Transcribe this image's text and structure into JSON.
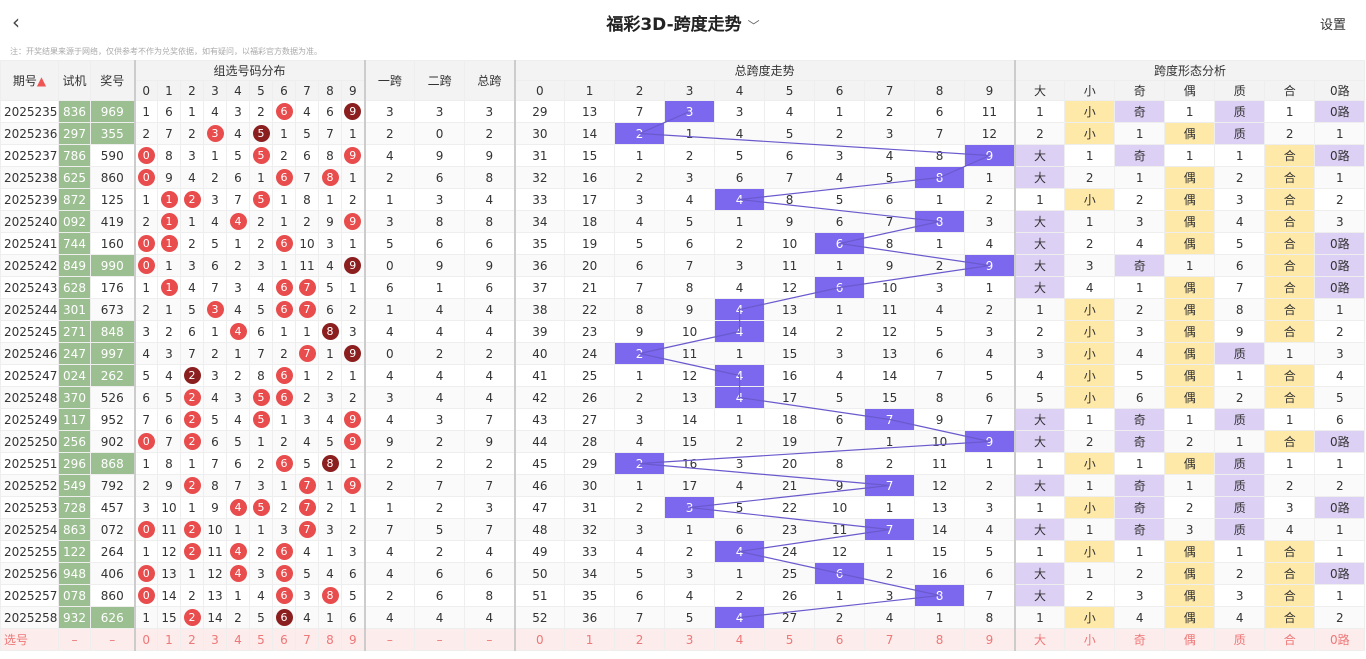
{
  "header": {
    "back_icon": "‹",
    "title": "福彩3D-跨度走势",
    "settings": "设置"
  },
  "note": "注：开奖结果来源于网络，仅供参考不作为兑奖依据，如有疑问，以福彩官方数据为准。",
  "columns": {
    "period": "期号",
    "trial": "试机",
    "lottery": "奖号",
    "dist_title": "组选号码分布",
    "kua1": "一跨",
    "kua2": "二跨",
    "total": "总跨",
    "trend_title": "总跨度走势",
    "shape_title": "跨度形态分析",
    "digits": [
      "0",
      "1",
      "2",
      "3",
      "4",
      "5",
      "6",
      "7",
      "8",
      "9"
    ],
    "shape": [
      "大",
      "小",
      "奇",
      "偶",
      "质",
      "合",
      "0路"
    ]
  },
  "rows": [
    {
      "p": "2025235",
      "t": "836",
      "n": "969",
      "g": 1,
      "d": [
        "1",
        "6",
        "1",
        "4",
        "3",
        "2",
        "6",
        "4",
        "6",
        "9"
      ],
      "k": [
        "3",
        "3",
        "3"
      ],
      "tr": [
        "29",
        "13",
        "7",
        "3",
        "3",
        "4",
        "1",
        "2",
        "6",
        "11"
      ],
      "sp": 3,
      "sh": [
        "1",
        "小",
        "奇",
        "1",
        "质",
        "1",
        "0路"
      ]
    },
    {
      "p": "2025236",
      "t": "297",
      "n": "355",
      "g": 1,
      "d": [
        "2",
        "7",
        "2",
        "3",
        "4",
        "5",
        "1",
        "5",
        "7",
        "1"
      ],
      "k": [
        "2",
        "0",
        "2"
      ],
      "tr": [
        "30",
        "14",
        "2",
        "1",
        "4",
        "5",
        "2",
        "3",
        "7",
        "12"
      ],
      "sp": 2,
      "sh": [
        "2",
        "小",
        "1",
        "偶",
        "质",
        "2",
        "1"
      ]
    },
    {
      "p": "2025237",
      "t": "786",
      "n": "590",
      "g": 0,
      "d": [
        "0",
        "8",
        "3",
        "1",
        "5",
        "5",
        "2",
        "6",
        "8",
        "9"
      ],
      "k": [
        "4",
        "9",
        "9"
      ],
      "tr": [
        "31",
        "15",
        "1",
        "2",
        "5",
        "6",
        "3",
        "4",
        "8",
        "9"
      ],
      "sp": 9,
      "sh": [
        "大",
        "1",
        "奇",
        "1",
        "1",
        "合",
        "0路"
      ]
    },
    {
      "p": "2025238",
      "t": "625",
      "n": "860",
      "g": 0,
      "d": [
        "0",
        "9",
        "4",
        "2",
        "6",
        "1",
        "6",
        "7",
        "8",
        "1"
      ],
      "k": [
        "2",
        "6",
        "8"
      ],
      "tr": [
        "32",
        "16",
        "2",
        "3",
        "6",
        "7",
        "4",
        "5",
        "8",
        "1"
      ],
      "sp": 8,
      "sh": [
        "大",
        "2",
        "1",
        "偶",
        "2",
        "合",
        "1"
      ]
    },
    {
      "p": "2025239",
      "t": "872",
      "n": "125",
      "g": 0,
      "d": [
        "1",
        "1",
        "2",
        "3",
        "7",
        "5",
        "1",
        "8",
        "1",
        "2"
      ],
      "k": [
        "1",
        "3",
        "4"
      ],
      "tr": [
        "33",
        "17",
        "3",
        "4",
        "4",
        "8",
        "5",
        "6",
        "1",
        "2"
      ],
      "sp": 4,
      "sh": [
        "1",
        "小",
        "2",
        "偶",
        "3",
        "合",
        "2"
      ]
    },
    {
      "p": "2025240",
      "t": "092",
      "n": "419",
      "g": 0,
      "d": [
        "2",
        "1",
        "1",
        "4",
        "4",
        "2",
        "1",
        "2",
        "9",
        "9"
      ],
      "k": [
        "3",
        "8",
        "8"
      ],
      "tr": [
        "34",
        "18",
        "4",
        "5",
        "1",
        "9",
        "6",
        "7",
        "8",
        "3"
      ],
      "sp": 8,
      "sh": [
        "大",
        "1",
        "3",
        "偶",
        "4",
        "合",
        "3"
      ]
    },
    {
      "p": "2025241",
      "t": "744",
      "n": "160",
      "g": 0,
      "d": [
        "0",
        "1",
        "2",
        "5",
        "1",
        "2",
        "6",
        "10",
        "3",
        "1"
      ],
      "k": [
        "5",
        "6",
        "6"
      ],
      "tr": [
        "35",
        "19",
        "5",
        "6",
        "2",
        "10",
        "6",
        "8",
        "1",
        "4"
      ],
      "sp": 6,
      "sh": [
        "大",
        "2",
        "4",
        "偶",
        "5",
        "合",
        "0路"
      ]
    },
    {
      "p": "2025242",
      "t": "849",
      "n": "990",
      "g": 1,
      "d": [
        "0",
        "1",
        "3",
        "6",
        "2",
        "3",
        "1",
        "11",
        "4",
        "9"
      ],
      "k": [
        "0",
        "9",
        "9"
      ],
      "tr": [
        "36",
        "20",
        "6",
        "7",
        "3",
        "11",
        "1",
        "9",
        "2",
        "9"
      ],
      "sp": 9,
      "sh": [
        "大",
        "3",
        "奇",
        "1",
        "6",
        "合",
        "0路"
      ]
    },
    {
      "p": "2025243",
      "t": "628",
      "n": "176",
      "g": 0,
      "d": [
        "1",
        "1",
        "4",
        "7",
        "3",
        "4",
        "6",
        "7",
        "5",
        "1"
      ],
      "k": [
        "6",
        "1",
        "6"
      ],
      "tr": [
        "37",
        "21",
        "7",
        "8",
        "4",
        "12",
        "6",
        "10",
        "3",
        "1"
      ],
      "sp": 6,
      "sh": [
        "大",
        "4",
        "1",
        "偶",
        "7",
        "合",
        "0路"
      ]
    },
    {
      "p": "2025244",
      "t": "301",
      "n": "673",
      "g": 0,
      "d": [
        "2",
        "1",
        "5",
        "3",
        "4",
        "5",
        "6",
        "7",
        "6",
        "2"
      ],
      "k": [
        "1",
        "4",
        "4"
      ],
      "tr": [
        "38",
        "22",
        "8",
        "9",
        "4",
        "13",
        "1",
        "11",
        "4",
        "2"
      ],
      "sp": 4,
      "sh": [
        "1",
        "小",
        "2",
        "偶",
        "8",
        "合",
        "1"
      ]
    },
    {
      "p": "2025245",
      "t": "271",
      "n": "848",
      "g": 1,
      "d": [
        "3",
        "2",
        "6",
        "1",
        "4",
        "6",
        "1",
        "1",
        "8",
        "3"
      ],
      "k": [
        "4",
        "4",
        "4"
      ],
      "tr": [
        "39",
        "23",
        "9",
        "10",
        "4",
        "14",
        "2",
        "12",
        "5",
        "3"
      ],
      "sp": 4,
      "sh": [
        "2",
        "小",
        "3",
        "偶",
        "9",
        "合",
        "2"
      ]
    },
    {
      "p": "2025246",
      "t": "247",
      "n": "997",
      "g": 1,
      "d": [
        "4",
        "3",
        "7",
        "2",
        "1",
        "7",
        "2",
        "7",
        "1",
        "9"
      ],
      "k": [
        "0",
        "2",
        "2"
      ],
      "tr": [
        "40",
        "24",
        "2",
        "11",
        "1",
        "15",
        "3",
        "13",
        "6",
        "4"
      ],
      "sp": 2,
      "sh": [
        "3",
        "小",
        "4",
        "偶",
        "质",
        "1",
        "3"
      ]
    },
    {
      "p": "2025247",
      "t": "024",
      "n": "262",
      "g": 1,
      "d": [
        "5",
        "4",
        "2",
        "3",
        "2",
        "8",
        "6",
        "1",
        "2",
        "1"
      ],
      "k": [
        "4",
        "4",
        "4"
      ],
      "tr": [
        "41",
        "25",
        "1",
        "12",
        "4",
        "16",
        "4",
        "14",
        "7",
        "5"
      ],
      "sp": 4,
      "sh": [
        "4",
        "小",
        "5",
        "偶",
        "1",
        "合",
        "4"
      ]
    },
    {
      "p": "2025248",
      "t": "370",
      "n": "526",
      "g": 0,
      "d": [
        "6",
        "5",
        "2",
        "4",
        "3",
        "5",
        "6",
        "2",
        "3",
        "2"
      ],
      "k": [
        "3",
        "4",
        "4"
      ],
      "tr": [
        "42",
        "26",
        "2",
        "13",
        "4",
        "17",
        "5",
        "15",
        "8",
        "6"
      ],
      "sp": 4,
      "sh": [
        "5",
        "小",
        "6",
        "偶",
        "2",
        "合",
        "5"
      ]
    },
    {
      "p": "2025249",
      "t": "117",
      "n": "952",
      "g": 0,
      "d": [
        "7",
        "6",
        "2",
        "5",
        "4",
        "5",
        "1",
        "3",
        "4",
        "9"
      ],
      "k": [
        "4",
        "3",
        "7"
      ],
      "tr": [
        "43",
        "27",
        "3",
        "14",
        "1",
        "18",
        "6",
        "7",
        "9",
        "7"
      ],
      "sp": 7,
      "sh": [
        "大",
        "1",
        "奇",
        "1",
        "质",
        "1",
        "6"
      ]
    },
    {
      "p": "2025250",
      "t": "256",
      "n": "902",
      "g": 0,
      "d": [
        "0",
        "7",
        "2",
        "6",
        "5",
        "1",
        "2",
        "4",
        "5",
        "9"
      ],
      "k": [
        "9",
        "2",
        "9"
      ],
      "tr": [
        "44",
        "28",
        "4",
        "15",
        "2",
        "19",
        "7",
        "1",
        "10",
        "9"
      ],
      "sp": 9,
      "sh": [
        "大",
        "2",
        "奇",
        "2",
        "1",
        "合",
        "0路"
      ]
    },
    {
      "p": "2025251",
      "t": "296",
      "n": "868",
      "g": 1,
      "d": [
        "1",
        "8",
        "1",
        "7",
        "6",
        "2",
        "6",
        "5",
        "8",
        "1"
      ],
      "k": [
        "2",
        "2",
        "2"
      ],
      "tr": [
        "45",
        "29",
        "2",
        "16",
        "3",
        "20",
        "8",
        "2",
        "11",
        "1"
      ],
      "sp": 2,
      "sh": [
        "1",
        "小",
        "1",
        "偶",
        "质",
        "1",
        "1"
      ]
    },
    {
      "p": "2025252",
      "t": "549",
      "n": "792",
      "g": 0,
      "d": [
        "2",
        "9",
        "2",
        "8",
        "7",
        "3",
        "1",
        "7",
        "1",
        "9"
      ],
      "k": [
        "2",
        "7",
        "7"
      ],
      "tr": [
        "46",
        "30",
        "1",
        "17",
        "4",
        "21",
        "9",
        "7",
        "12",
        "2"
      ],
      "sp": 7,
      "sh": [
        "大",
        "1",
        "奇",
        "1",
        "质",
        "2",
        "2"
      ]
    },
    {
      "p": "2025253",
      "t": "728",
      "n": "457",
      "g": 0,
      "d": [
        "3",
        "10",
        "1",
        "9",
        "4",
        "5",
        "2",
        "7",
        "2",
        "1"
      ],
      "k": [
        "1",
        "2",
        "3"
      ],
      "tr": [
        "47",
        "31",
        "2",
        "3",
        "5",
        "22",
        "10",
        "1",
        "13",
        "3"
      ],
      "sp": 3,
      "sh": [
        "1",
        "小",
        "奇",
        "2",
        "质",
        "3",
        "0路"
      ]
    },
    {
      "p": "2025254",
      "t": "863",
      "n": "072",
      "g": 0,
      "d": [
        "0",
        "11",
        "2",
        "10",
        "1",
        "1",
        "3",
        "7",
        "3",
        "2"
      ],
      "k": [
        "7",
        "5",
        "7"
      ],
      "tr": [
        "48",
        "32",
        "3",
        "1",
        "6",
        "23",
        "11",
        "7",
        "14",
        "4"
      ],
      "sp": 7,
      "sh": [
        "大",
        "1",
        "奇",
        "3",
        "质",
        "4",
        "1"
      ]
    },
    {
      "p": "2025255",
      "t": "122",
      "n": "264",
      "g": 0,
      "d": [
        "1",
        "12",
        "2",
        "11",
        "4",
        "2",
        "6",
        "4",
        "1",
        "3"
      ],
      "k": [
        "4",
        "2",
        "4"
      ],
      "tr": [
        "49",
        "33",
        "4",
        "2",
        "4",
        "24",
        "12",
        "1",
        "15",
        "5"
      ],
      "sp": 4,
      "sh": [
        "1",
        "小",
        "1",
        "偶",
        "1",
        "合",
        "1"
      ]
    },
    {
      "p": "2025256",
      "t": "948",
      "n": "406",
      "g": 0,
      "d": [
        "0",
        "13",
        "1",
        "12",
        "4",
        "3",
        "6",
        "5",
        "4",
        "6"
      ],
      "k": [
        "4",
        "6",
        "6"
      ],
      "tr": [
        "50",
        "34",
        "5",
        "3",
        "1",
        "25",
        "6",
        "2",
        "16",
        "6"
      ],
      "sp": 6,
      "sh": [
        "大",
        "1",
        "2",
        "偶",
        "2",
        "合",
        "0路"
      ]
    },
    {
      "p": "2025257",
      "t": "078",
      "n": "860",
      "g": 0,
      "d": [
        "0",
        "14",
        "2",
        "13",
        "1",
        "4",
        "6",
        "3",
        "8",
        "5"
      ],
      "k": [
        "2",
        "6",
        "8"
      ],
      "tr": [
        "51",
        "35",
        "6",
        "4",
        "2",
        "26",
        "1",
        "3",
        "8",
        "7"
      ],
      "sp": 8,
      "sh": [
        "大",
        "2",
        "3",
        "偶",
        "3",
        "合",
        "1"
      ]
    },
    {
      "p": "2025258",
      "t": "932",
      "n": "626",
      "g": 1,
      "d": [
        "1",
        "15",
        "2",
        "14",
        "2",
        "5",
        "6",
        "4",
        "1",
        "6"
      ],
      "k": [
        "4",
        "4",
        "4"
      ],
      "tr": [
        "52",
        "36",
        "7",
        "5",
        "4",
        "27",
        "2",
        "4",
        "1",
        "8"
      ],
      "sp": 4,
      "sh": [
        "1",
        "小",
        "4",
        "偶",
        "4",
        "合",
        "2"
      ]
    }
  ],
  "footer": {
    "label": "选号",
    "dash": "–",
    "digits": [
      "0",
      "1",
      "2",
      "3",
      "4",
      "5",
      "6",
      "7",
      "8",
      "9"
    ],
    "shape": [
      "大",
      "小",
      "奇",
      "偶",
      "质",
      "合",
      "0路"
    ]
  }
}
